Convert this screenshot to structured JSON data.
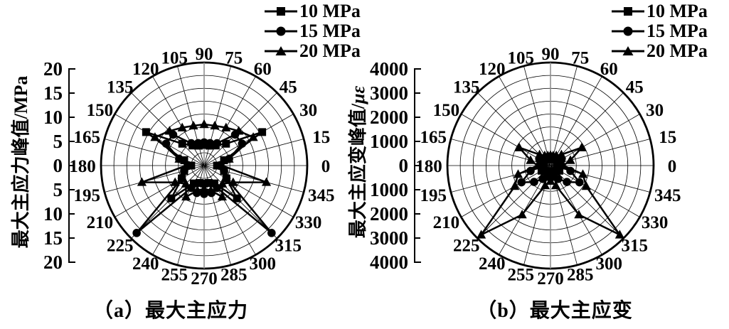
{
  "figure": {
    "colors": {
      "ink": "#000000",
      "background": "#ffffff",
      "polar_vertical_line": "#8a8a8a"
    }
  },
  "legend": {
    "items": [
      {
        "label": "10 MPa",
        "marker": "square"
      },
      {
        "label": "15 MPa",
        "marker": "circle"
      },
      {
        "label": "20 MPa",
        "marker": "triangle"
      }
    ]
  },
  "chart_data": [
    {
      "id": "a",
      "type": "polar-line",
      "caption": "（a）最大主应力",
      "radial_axis_title": "最大主应力峰值/MPa",
      "radial_axis_title_prefix": "最大主应力峰值/",
      "radial_axis_unit": "MPa",
      "radial_max": 20,
      "radial_tick_labels": [
        "20",
        "15",
        "10",
        "5",
        "0",
        "5",
        "10",
        "15",
        "20"
      ],
      "grid_rings": 8,
      "angle_step_deg": 15,
      "angles_deg": [
        0,
        15,
        30,
        45,
        60,
        75,
        90,
        105,
        120,
        135,
        150,
        165,
        180,
        195,
        210,
        225,
        240,
        255,
        270,
        285,
        300,
        315,
        330,
        345
      ],
      "legend_position": "top-right",
      "series": [
        {
          "name": "10 MPa",
          "marker": "square",
          "values": [
            2.5,
            4,
            13,
            6,
            4.5,
            4,
            4,
            4,
            4.5,
            6,
            13,
            4,
            2.5,
            4,
            5,
            9,
            4,
            3.5,
            3.5,
            3.5,
            4,
            9,
            5,
            4
          ]
        },
        {
          "name": "15 MPa",
          "marker": "circle",
          "values": [
            3,
            5,
            8.5,
            8.5,
            5,
            4.5,
            4.5,
            4.5,
            5,
            8.5,
            8.5,
            5,
            3,
            4,
            5,
            18.5,
            5,
            5.5,
            5.5,
            5.5,
            5,
            18.5,
            5,
            4
          ]
        },
        {
          "name": "20 MPa",
          "marker": "triangle",
          "values": [
            3.5,
            5,
            11,
            9.5,
            8.5,
            8,
            8,
            8,
            8.5,
            9.5,
            11,
            5,
            3.5,
            12.5,
            6.5,
            5,
            7,
            5,
            4.5,
            5,
            7,
            5,
            6.5,
            12.5
          ]
        }
      ]
    },
    {
      "id": "b",
      "type": "polar-line",
      "caption": "（b）最大主应变",
      "radial_axis_title": "最大主应变峰值/με",
      "radial_axis_title_prefix": "最大主应变峰值/",
      "radial_axis_unit": "με",
      "radial_max": 4000,
      "radial_tick_labels": [
        "4000",
        "3000",
        "2000",
        "1000",
        "0",
        "1000",
        "2000",
        "3000",
        "4000"
      ],
      "grid_rings": 8,
      "angle_step_deg": 15,
      "angles_deg": [
        0,
        15,
        30,
        45,
        60,
        75,
        90,
        105,
        120,
        135,
        150,
        165,
        180,
        195,
        210,
        225,
        240,
        255,
        270,
        285,
        300,
        315,
        330,
        345
      ],
      "legend_position": "top-right",
      "series": [
        {
          "name": "10 MPa",
          "marker": "square",
          "values": [
            250,
            300,
            400,
            350,
            300,
            250,
            250,
            250,
            300,
            350,
            400,
            300,
            250,
            350,
            400,
            300,
            250,
            250,
            250,
            250,
            250,
            300,
            400,
            350
          ]
        },
        {
          "name": "15 MPa",
          "marker": "circle",
          "values": [
            300,
            400,
            500,
            400,
            350,
            300,
            300,
            300,
            350,
            400,
            500,
            400,
            300,
            800,
            1300,
            900,
            600,
            450,
            400,
            450,
            600,
            900,
            1300,
            800
          ]
        },
        {
          "name": "20 MPa",
          "marker": "triangle",
          "values": [
            500,
            800,
            1400,
            600,
            450,
            400,
            400,
            400,
            450,
            600,
            1400,
            800,
            500,
            1300,
            1600,
            3800,
            2200,
            800,
            600,
            800,
            2200,
            3800,
            1600,
            1300
          ]
        }
      ]
    }
  ]
}
